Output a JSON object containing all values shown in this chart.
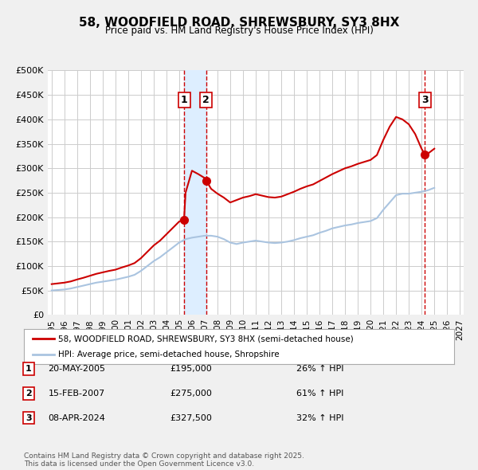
{
  "title": "58, WOODFIELD ROAD, SHREWSBURY, SY3 8HX",
  "subtitle": "Price paid vs. HM Land Registry's House Price Index (HPI)",
  "background_color": "#f0f0f0",
  "plot_bg_color": "#ffffff",
  "grid_color": "#cccccc",
  "ylim": [
    0,
    500000
  ],
  "yticks": [
    0,
    50000,
    100000,
    150000,
    200000,
    250000,
    300000,
    350000,
    400000,
    450000,
    500000
  ],
  "ytick_labels": [
    "£0",
    "£50K",
    "£100K",
    "£150K",
    "£200K",
    "£250K",
    "£300K",
    "£350K",
    "£400K",
    "£450K",
    "£500K"
  ],
  "xlim_start": 1995,
  "xlim_end": 2027,
  "xticks": [
    1995,
    1996,
    1997,
    1998,
    1999,
    2000,
    2001,
    2002,
    2003,
    2004,
    2005,
    2006,
    2007,
    2008,
    2009,
    2010,
    2011,
    2012,
    2013,
    2014,
    2015,
    2016,
    2017,
    2018,
    2019,
    2020,
    2021,
    2022,
    2023,
    2024,
    2025,
    2026,
    2027
  ],
  "hpi_color": "#aac4e0",
  "price_color": "#cc0000",
  "sale_dot_color": "#cc0000",
  "vline_color": "#cc0000",
  "vshade_color": "#ddeeff",
  "sale1_x": 2005.38,
  "sale1_y": 195000,
  "sale1_label": "1",
  "sale1_date": "20-MAY-2005",
  "sale1_price": "£195,000",
  "sale1_pct": "26% ↑ HPI",
  "sale2_x": 2007.12,
  "sale2_y": 275000,
  "sale2_label": "2",
  "sale2_date": "15-FEB-2007",
  "sale2_price": "£275,000",
  "sale2_pct": "61% ↑ HPI",
  "sale3_x": 2024.27,
  "sale3_y": 327500,
  "sale3_label": "3",
  "sale3_date": "08-APR-2024",
  "sale3_price": "£327,500",
  "sale3_pct": "32% ↑ HPI",
  "legend_line1": "58, WOODFIELD ROAD, SHREWSBURY, SY3 8HX (semi-detached house)",
  "legend_line2": "HPI: Average price, semi-detached house, Shropshire",
  "footer": "Contains HM Land Registry data © Crown copyright and database right 2025.\nThis data is licensed under the Open Government Licence v3.0."
}
